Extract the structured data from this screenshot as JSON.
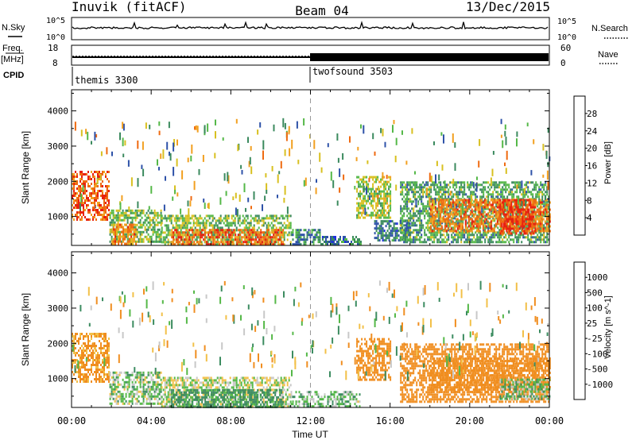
{
  "header": {
    "station": "Inuvik (fitACF)",
    "beam": "Beam 04",
    "date": "13/Dec/2015"
  },
  "strip_labels": {
    "nsky": "N.Sky",
    "freq_line1": "Freq.",
    "freq_line2": "[MHz]",
    "cpid": "CPID",
    "nsearch": "N.Search",
    "nave": "Nave",
    "nsky_ticks": [
      "10^5",
      "10^0"
    ],
    "nsearch_ticks": [
      "10^5",
      "10^0"
    ],
    "freq_ticks": [
      "18",
      "8"
    ],
    "nave_ticks": [
      "60",
      "0"
    ]
  },
  "cpid_segments": [
    {
      "label": "themis 3300",
      "start_hour": 0
    },
    {
      "label": "twofsound 3503",
      "start_hour": 12
    }
  ],
  "x_axis": {
    "label": "Time UT",
    "ticks": [
      "00:00",
      "04:00",
      "08:00",
      "12:00",
      "16:00",
      "20:00",
      "00:00"
    ],
    "range_hours": [
      0,
      24
    ]
  },
  "chart_data": [
    {
      "type": "heatmap",
      "quantity": "power",
      "ylabel": "Slant Range [km]",
      "ylim": [
        180,
        4600
      ],
      "yticks": [
        1000,
        2000,
        3000,
        4000
      ],
      "colorbar_label": "Power [dB]",
      "colorbar_ticks": [
        "4",
        "8",
        "12",
        "16",
        "20",
        "24",
        "28"
      ],
      "colorbar_colors": [
        "#1f2fe0",
        "#2e52a8",
        "#3b8a5e",
        "#55b848",
        "#d8c020",
        "#f2a020",
        "#ef6a10",
        "#e82010"
      ],
      "regions": [
        {
          "t": [
            0.0,
            1.9
          ],
          "r": [
            900,
            2300
          ],
          "v": 27
        },
        {
          "t": [
            1.9,
            4.5
          ],
          "r": [
            260,
            1200
          ],
          "v": 14
        },
        {
          "t": [
            2.0,
            3.2
          ],
          "r": [
            200,
            800
          ],
          "v": 24
        },
        {
          "t": [
            4.5,
            11.0
          ],
          "r": [
            200,
            1050
          ],
          "v": 14
        },
        {
          "t": [
            5.0,
            10.6
          ],
          "r": [
            200,
            650
          ],
          "v": 26
        },
        {
          "t": [
            11.0,
            12.5
          ],
          "r": [
            200,
            650
          ],
          "v": 10
        },
        {
          "t": [
            12.5,
            14.5
          ],
          "r": [
            200,
            450
          ],
          "v": 8
        },
        {
          "t": [
            14.3,
            16.0
          ],
          "r": [
            950,
            2150
          ],
          "v": 16
        },
        {
          "t": [
            15.2,
            17.0
          ],
          "r": [
            300,
            900
          ],
          "v": 8
        },
        {
          "t": [
            16.5,
            24.0
          ],
          "r": [
            300,
            2000
          ],
          "v": 12
        },
        {
          "t": [
            18.0,
            24.0
          ],
          "r": [
            600,
            1500
          ],
          "v": 25
        },
        {
          "t": [
            21.5,
            23.3
          ],
          "r": [
            550,
            1500
          ],
          "v": 29
        }
      ]
    },
    {
      "type": "heatmap",
      "quantity": "velocity",
      "ylabel": "Slant Range [km]",
      "ylim": [
        180,
        4600
      ],
      "yticks": [
        1000,
        2000,
        3000,
        4000
      ],
      "colorbar_label": "Velocity [m s^-1]",
      "colorbar_ticks": [
        "1000",
        "500",
        "100",
        "25",
        "-25",
        "-100",
        "-500",
        "-1000"
      ],
      "colorbar_colors": [
        "#1f2fb5",
        "#2e5aa0",
        "#3c8c60",
        "#55b848",
        "#c8c8c8",
        "#f2c048",
        "#f08e20",
        "#ee6018",
        "#e82010"
      ],
      "regions": [
        {
          "t": [
            0.0,
            1.9
          ],
          "r": [
            900,
            2300
          ],
          "v": -150
        },
        {
          "t": [
            1.9,
            4.5
          ],
          "r": [
            260,
            1200
          ],
          "v": 40
        },
        {
          "t": [
            4.5,
            11.0
          ],
          "r": [
            200,
            1050
          ],
          "v": 0
        },
        {
          "t": [
            5.0,
            10.6
          ],
          "r": [
            200,
            700
          ],
          "v": 150
        },
        {
          "t": [
            11.0,
            14.5
          ],
          "r": [
            200,
            650
          ],
          "v": 60
        },
        {
          "t": [
            14.3,
            16.0
          ],
          "r": [
            950,
            2150
          ],
          "v": -200
        },
        {
          "t": [
            16.5,
            24.0
          ],
          "r": [
            350,
            2000
          ],
          "v": -250
        },
        {
          "t": [
            18.0,
            24.0
          ],
          "r": [
            650,
            1600
          ],
          "v": -300
        },
        {
          "t": [
            21.5,
            24.0
          ],
          "r": [
            400,
            1000
          ],
          "v": 60
        }
      ]
    }
  ]
}
